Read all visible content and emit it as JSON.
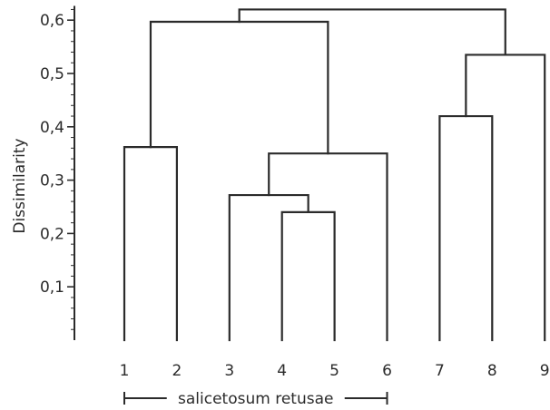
{
  "chart_data": {
    "type": "dendrogram",
    "ylabel": "Dissimilarity",
    "ylim": [
      0,
      0.62
    ],
    "yticks": [
      "0,1",
      "0,2",
      "0,3",
      "0,4",
      "0,5",
      "0,6"
    ],
    "ytick_values": [
      0.1,
      0.2,
      0.3,
      0.4,
      0.5,
      0.6
    ],
    "minor_tick_step": 0.02,
    "leaves": [
      "1",
      "2",
      "3",
      "4",
      "5",
      "6",
      "7",
      "8",
      "9"
    ],
    "merges": [
      {
        "left": "4",
        "right": "5",
        "height": 0.24
      },
      {
        "left": "3",
        "right": "4-5",
        "height": 0.272
      },
      {
        "left": "3-4-5",
        "right": "6",
        "height": 0.35
      },
      {
        "left": "1",
        "right": "2",
        "height": 0.362
      },
      {
        "left": "7",
        "right": "8",
        "height": 0.42
      },
      {
        "left": "7-8",
        "right": "9",
        "height": 0.535
      },
      {
        "left": "1-2",
        "right": "3-6",
        "height": 0.597
      },
      {
        "left": "1-6",
        "right": "7-9",
        "height": 0.62
      }
    ],
    "group_annotation": {
      "label": "salicetosum retusae",
      "from_leaf": "1",
      "to_leaf": "6"
    }
  }
}
